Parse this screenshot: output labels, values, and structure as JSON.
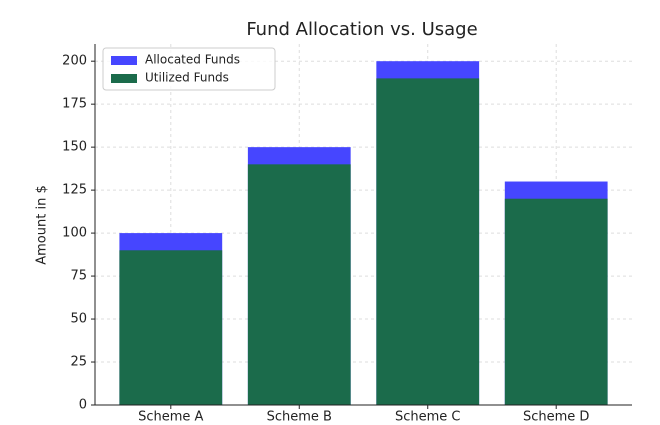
{
  "chart_data": {
    "type": "bar",
    "title": "Fund Allocation vs. Usage",
    "ylabel": "Amount in $",
    "categories": [
      "Scheme A",
      "Scheme B",
      "Scheme C",
      "Scheme D"
    ],
    "series": [
      {
        "name": "Allocated Funds",
        "color": "#4646ff",
        "values": [
          100,
          150,
          200,
          130
        ]
      },
      {
        "name": "Utilized Funds",
        "color": "#1b6b4b",
        "values": [
          90,
          140,
          190,
          120
        ]
      }
    ],
    "ylim": [
      0,
      210
    ],
    "yticks": [
      0,
      25,
      50,
      75,
      100,
      125,
      150,
      175,
      200
    ],
    "grid": true,
    "legend": "upper left"
  }
}
